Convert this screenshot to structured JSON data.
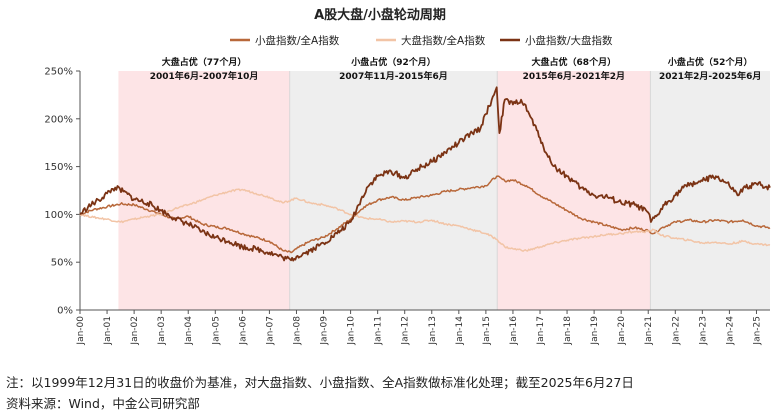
{
  "chart_data": {
    "type": "line",
    "title": "A股大盘/小盘轮动周期",
    "ylim": [
      0,
      250
    ],
    "yticks": [
      {
        "value": 0,
        "label": "0%"
      },
      {
        "value": 50,
        "label": "50%"
      },
      {
        "value": 100,
        "label": "100%"
      },
      {
        "value": 150,
        "label": "150%"
      },
      {
        "value": 200,
        "label": "200%"
      },
      {
        "value": 250,
        "label": "250%"
      }
    ],
    "xlim": [
      2000.0,
      2025.5
    ],
    "xticks": [
      "Jan-00",
      "Jan-01",
      "Jan-02",
      "Jan-03",
      "Jan-04",
      "Jan-05",
      "Jan-06",
      "Jan-07",
      "Jan-08",
      "Jan-09",
      "Jan-10",
      "Jan-11",
      "Jan-12",
      "Jan-13",
      "Jan-14",
      "Jan-15",
      "Jan-16",
      "Jan-17",
      "Jan-18",
      "Jan-19",
      "Jan-20",
      "Jan-21",
      "Jan-22",
      "Jan-23",
      "Jan-24",
      "Jan-25"
    ],
    "legend_position": "top",
    "periods": [
      {
        "start": 2001.42,
        "end": 2007.75,
        "style": "pink",
        "label1": "大盘占优（77个月）",
        "label2": "2001年6月-2007年10月"
      },
      {
        "start": 2007.75,
        "end": 2015.42,
        "style": "gray",
        "label1": "小盘占优（92个月）",
        "label2": "2007年11月-2015年6月"
      },
      {
        "start": 2015.42,
        "end": 2021.08,
        "style": "pink",
        "label1": "大盘占优（68个月）",
        "label2": "2015年6月-2021年2月"
      },
      {
        "start": 2021.08,
        "end": 2025.5,
        "style": "gray",
        "label1": "小盘占优（52个月）",
        "label2": "2021年2月-2025年6月"
      }
    ],
    "series": [
      {
        "name": "小盘指数/全A指数",
        "color": "#b8683a",
        "points": [
          [
            2000.0,
            100
          ],
          [
            2000.5,
            105
          ],
          [
            2001.0,
            108
          ],
          [
            2001.5,
            111
          ],
          [
            2002.0,
            110
          ],
          [
            2002.5,
            105
          ],
          [
            2003.0,
            100
          ],
          [
            2003.5,
            95
          ],
          [
            2004.0,
            98
          ],
          [
            2004.5,
            90
          ],
          [
            2005.0,
            87
          ],
          [
            2005.5,
            85
          ],
          [
            2006.0,
            80
          ],
          [
            2006.5,
            76
          ],
          [
            2007.0,
            72
          ],
          [
            2007.5,
            62
          ],
          [
            2007.8,
            60
          ],
          [
            2008.0,
            64
          ],
          [
            2008.5,
            72
          ],
          [
            2009.0,
            76
          ],
          [
            2009.5,
            85
          ],
          [
            2010.0,
            95
          ],
          [
            2010.5,
            108
          ],
          [
            2011.0,
            115
          ],
          [
            2011.5,
            118
          ],
          [
            2012.0,
            115
          ],
          [
            2012.5,
            118
          ],
          [
            2013.0,
            120
          ],
          [
            2013.5,
            124
          ],
          [
            2014.0,
            126
          ],
          [
            2014.5,
            128
          ],
          [
            2015.0,
            130
          ],
          [
            2015.4,
            140
          ],
          [
            2015.7,
            135
          ],
          [
            2016.0,
            136
          ],
          [
            2016.5,
            130
          ],
          [
            2017.0,
            120
          ],
          [
            2017.5,
            112
          ],
          [
            2018.0,
            104
          ],
          [
            2018.5,
            96
          ],
          [
            2019.0,
            92
          ],
          [
            2019.5,
            88
          ],
          [
            2020.0,
            84
          ],
          [
            2020.5,
            86
          ],
          [
            2021.0,
            83
          ],
          [
            2021.2,
            80
          ],
          [
            2021.5,
            86
          ],
          [
            2022.0,
            92
          ],
          [
            2022.5,
            94
          ],
          [
            2023.0,
            92
          ],
          [
            2023.5,
            94
          ],
          [
            2024.0,
            92
          ],
          [
            2024.5,
            94
          ],
          [
            2025.0,
            88
          ],
          [
            2025.5,
            86
          ]
        ]
      },
      {
        "name": "大盘指数/全A指数",
        "color": "#f2c4a6",
        "points": [
          [
            2000.0,
            100
          ],
          [
            2000.5,
            97
          ],
          [
            2001.0,
            95
          ],
          [
            2001.5,
            92
          ],
          [
            2002.0,
            95
          ],
          [
            2002.5,
            98
          ],
          [
            2003.0,
            100
          ],
          [
            2003.5,
            106
          ],
          [
            2004.0,
            110
          ],
          [
            2004.5,
            115
          ],
          [
            2005.0,
            120
          ],
          [
            2005.5,
            124
          ],
          [
            2006.0,
            126
          ],
          [
            2006.5,
            122
          ],
          [
            2007.0,
            118
          ],
          [
            2007.5,
            112
          ],
          [
            2008.0,
            117
          ],
          [
            2008.5,
            112
          ],
          [
            2009.0,
            110
          ],
          [
            2009.5,
            106
          ],
          [
            2010.0,
            100
          ],
          [
            2010.5,
            96
          ],
          [
            2011.0,
            95
          ],
          [
            2011.5,
            92
          ],
          [
            2012.0,
            93
          ],
          [
            2012.5,
            92
          ],
          [
            2013.0,
            94
          ],
          [
            2013.5,
            90
          ],
          [
            2014.0,
            88
          ],
          [
            2014.5,
            84
          ],
          [
            2015.0,
            80
          ],
          [
            2015.4,
            74
          ],
          [
            2015.7,
            66
          ],
          [
            2016.0,
            64
          ],
          [
            2016.5,
            62
          ],
          [
            2017.0,
            66
          ],
          [
            2017.5,
            70
          ],
          [
            2018.0,
            73
          ],
          [
            2018.5,
            75
          ],
          [
            2019.0,
            77
          ],
          [
            2019.5,
            79
          ],
          [
            2020.0,
            80
          ],
          [
            2020.5,
            82
          ],
          [
            2021.0,
            82
          ],
          [
            2021.2,
            84
          ],
          [
            2021.5,
            78
          ],
          [
            2022.0,
            75
          ],
          [
            2022.5,
            73
          ],
          [
            2023.0,
            70
          ],
          [
            2023.5,
            71
          ],
          [
            2024.0,
            69
          ],
          [
            2024.5,
            72
          ],
          [
            2025.0,
            69
          ],
          [
            2025.5,
            68
          ]
        ]
      },
      {
        "name": "小盘指数/大盘指数",
        "color": "#7b3314",
        "points": [
          [
            2000.0,
            100
          ],
          [
            2000.3,
            108
          ],
          [
            2000.7,
            115
          ],
          [
            2001.0,
            122
          ],
          [
            2001.3,
            128
          ],
          [
            2001.6,
            124
          ],
          [
            2002.0,
            116
          ],
          [
            2002.5,
            112
          ],
          [
            2003.0,
            104
          ],
          [
            2003.5,
            96
          ],
          [
            2004.0,
            90
          ],
          [
            2004.5,
            82
          ],
          [
            2005.0,
            76
          ],
          [
            2005.5,
            72
          ],
          [
            2006.0,
            66
          ],
          [
            2006.5,
            64
          ],
          [
            2007.0,
            60
          ],
          [
            2007.5,
            55
          ],
          [
            2007.8,
            52
          ],
          [
            2008.0,
            56
          ],
          [
            2008.5,
            62
          ],
          [
            2009.0,
            70
          ],
          [
            2009.5,
            80
          ],
          [
            2010.0,
            92
          ],
          [
            2010.3,
            110
          ],
          [
            2010.6,
            128
          ],
          [
            2011.0,
            140
          ],
          [
            2011.5,
            145
          ],
          [
            2012.0,
            138
          ],
          [
            2012.5,
            148
          ],
          [
            2013.0,
            155
          ],
          [
            2013.5,
            165
          ],
          [
            2014.0,
            175
          ],
          [
            2014.5,
            185
          ],
          [
            2014.8,
            190
          ],
          [
            2015.0,
            205
          ],
          [
            2015.3,
            225
          ],
          [
            2015.4,
            233
          ],
          [
            2015.5,
            185
          ],
          [
            2015.7,
            220
          ],
          [
            2016.0,
            215
          ],
          [
            2016.3,
            220
          ],
          [
            2016.6,
            205
          ],
          [
            2017.0,
            180
          ],
          [
            2017.3,
            160
          ],
          [
            2017.6,
            148
          ],
          [
            2018.0,
            140
          ],
          [
            2018.5,
            128
          ],
          [
            2019.0,
            120
          ],
          [
            2019.5,
            118
          ],
          [
            2020.0,
            112
          ],
          [
            2020.5,
            110
          ],
          [
            2021.0,
            102
          ],
          [
            2021.1,
            92
          ],
          [
            2021.3,
            98
          ],
          [
            2021.6,
            110
          ],
          [
            2022.0,
            120
          ],
          [
            2022.3,
            128
          ],
          [
            2022.6,
            132
          ],
          [
            2023.0,
            135
          ],
          [
            2023.5,
            140
          ],
          [
            2024.0,
            130
          ],
          [
            2024.3,
            120
          ],
          [
            2024.6,
            128
          ],
          [
            2025.0,
            132
          ],
          [
            2025.5,
            128
          ]
        ]
      }
    ]
  },
  "notes": {
    "line1": "注：以1999年12月31日的收盘价为基准，对大盘指数、小盘指数、全A指数做标准化处理；截至2025年6月27日",
    "line2": "资料来源：Wind，中金公司研究部"
  }
}
